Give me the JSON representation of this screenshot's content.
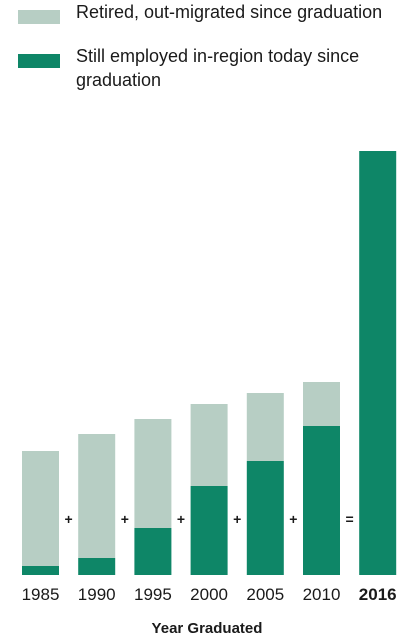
{
  "colors": {
    "retired": "#b7cec4",
    "employed": "#0e8667",
    "text": "#1a1a1a"
  },
  "chart_data": {
    "type": "bar",
    "stacked": true,
    "categories": [
      "1985",
      "1990",
      "1995",
      "2000",
      "2005",
      "2010",
      "2016"
    ],
    "highlighted_category": "2016",
    "series": [
      {
        "name": "Still employed in-region today since graduation",
        "values": [
          9,
          17,
          47,
          89,
          114,
          149,
          424
        ]
      },
      {
        "name": "Retired, out-migrated since graduation",
        "values": [
          115,
          124,
          109,
          82,
          68,
          44,
          0
        ]
      }
    ],
    "operators": [
      "+",
      "+",
      "+",
      "+",
      "+",
      "="
    ],
    "xlabel": "Year Graduated",
    "ylabel": "",
    "y_axis_shown": false,
    "grid": false,
    "legend_position": "top-left"
  }
}
